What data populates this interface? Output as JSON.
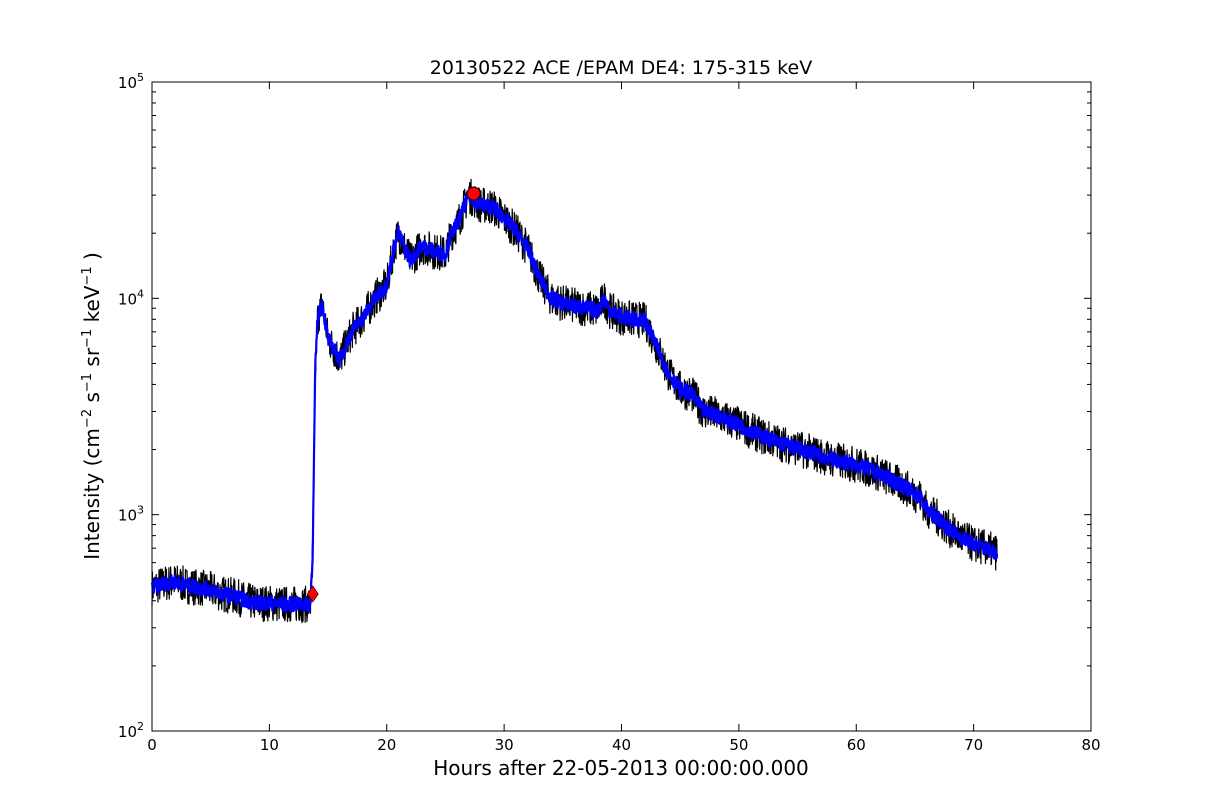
{
  "chart_data": {
    "type": "line",
    "title": "20130522 ACE /EPAM DE4: 175-315 keV",
    "xlabel": "Hours after 22-05-2013 00:00:00.000",
    "ylabel": {
      "prefix": "Intensity (cm",
      "exp1": "−2",
      "s": " s",
      "exp2": "−1",
      "sr": " sr",
      "exp3": "−1",
      "kev": " keV",
      "exp4": "−1",
      "suffix": " )"
    },
    "xlim": [
      0,
      80
    ],
    "ylim": [
      100,
      100000
    ],
    "yscale": "log",
    "grid": false,
    "x_ticks": [
      "0",
      "10",
      "20",
      "30",
      "40",
      "50",
      "60",
      "70",
      "80"
    ],
    "y_ticks": [
      {
        "base": "10",
        "exp": "2"
      },
      {
        "base": "10",
        "exp": "3"
      },
      {
        "base": "10",
        "exp": "4"
      },
      {
        "base": "10",
        "exp": "5"
      }
    ],
    "colors": {
      "raw": "#000000",
      "smoothed": "#0000ff",
      "markers": "#ff0000"
    },
    "series": [
      {
        "key": "raw",
        "x": [
          0,
          1,
          2,
          3,
          4,
          5,
          6,
          7,
          8,
          9,
          10,
          11,
          12,
          13.5,
          13.7,
          13.9,
          14.1,
          14.5,
          15,
          16,
          17,
          18,
          19,
          20,
          20.6,
          21,
          22,
          23,
          24,
          25,
          25.5,
          26,
          27,
          27.3,
          28,
          29,
          30,
          31,
          32,
          33,
          34,
          35,
          36,
          37,
          38,
          38.5,
          39,
          40,
          41,
          42,
          43,
          44,
          45,
          46,
          47,
          48,
          50,
          52,
          54,
          56,
          58,
          60,
          62,
          64,
          65.5,
          66,
          67,
          68,
          69,
          70,
          71,
          72
        ],
        "values": [
          460,
          480,
          490,
          470,
          460,
          450,
          430,
          420,
          400,
          390,
          390,
          385,
          385,
          385,
          700,
          4500,
          8000,
          9500,
          6500,
          5200,
          7000,
          8200,
          10000,
          11500,
          17000,
          20000,
          15000,
          17500,
          16500,
          16000,
          20000,
          22000,
          30000,
          29000,
          27000,
          26500,
          23500,
          20500,
          17000,
          12500,
          10000,
          9500,
          9200,
          9000,
          8800,
          10000,
          8800,
          8200,
          8000,
          7900,
          6000,
          4500,
          3800,
          3600,
          3000,
          2900,
          2600,
          2300,
          2100,
          1950,
          1800,
          1700,
          1550,
          1350,
          1200,
          1050,
          960,
          850,
          780,
          730,
          700,
          670
        ]
      },
      {
        "key": "smoothed",
        "x": [
          0,
          1,
          2,
          3,
          4,
          5,
          6,
          7,
          8,
          9,
          10,
          11,
          12,
          13.5,
          13.7,
          13.9,
          14.1,
          14.5,
          15,
          16,
          17,
          18,
          19,
          20,
          20.6,
          21,
          22,
          23,
          24,
          25,
          25.5,
          26,
          27,
          27.3,
          28,
          29,
          30,
          31,
          32,
          33,
          34,
          35,
          36,
          37,
          38,
          38.5,
          39,
          40,
          41,
          42,
          43,
          44,
          45,
          46,
          47,
          48,
          50,
          52,
          54,
          56,
          58,
          60,
          62,
          64,
          65.5,
          66,
          67,
          68,
          69,
          70,
          71,
          72
        ],
        "values": [
          460,
          480,
          490,
          470,
          460,
          450,
          430,
          420,
          400,
          390,
          390,
          385,
          385,
          385,
          700,
          4500,
          8000,
          9500,
          6500,
          5200,
          7000,
          8200,
          10000,
          11500,
          17000,
          20000,
          15000,
          17500,
          16500,
          16000,
          20000,
          22000,
          30000,
          29000,
          27000,
          26500,
          23500,
          20500,
          17000,
          12500,
          10000,
          9500,
          9200,
          9000,
          8800,
          10000,
          8800,
          8200,
          8000,
          7900,
          6000,
          4500,
          3800,
          3600,
          3000,
          2900,
          2600,
          2300,
          2100,
          1950,
          1800,
          1700,
          1550,
          1350,
          1200,
          1050,
          960,
          850,
          780,
          730,
          700,
          670
        ]
      }
    ],
    "markers": [
      {
        "shape": "diamond",
        "x": 13.7,
        "y": 430
      },
      {
        "shape": "circle",
        "x": 27.4,
        "y": 30500
      }
    ]
  }
}
